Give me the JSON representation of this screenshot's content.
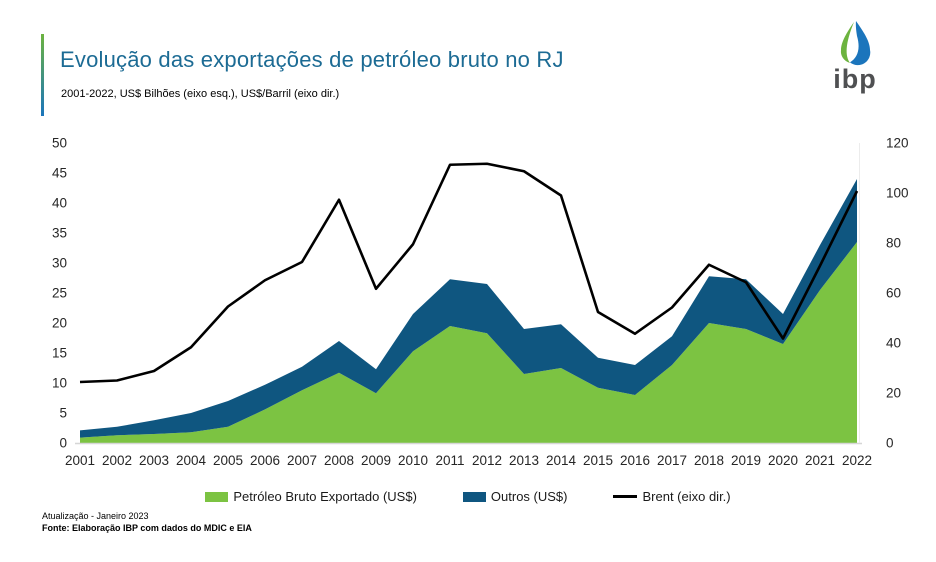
{
  "header": {
    "title": "Evolução das exportações de petróleo bruto no RJ",
    "subtitle": "2001-2022, US$ Bilhões (eixo esq.), US$/Barril (eixo dir.)",
    "logo_text": "ibp"
  },
  "chart_data": {
    "type": "area",
    "stacked_areas": true,
    "grid": false,
    "legend_position": "bottom",
    "x": [
      "2001",
      "2002",
      "2003",
      "2004",
      "2005",
      "2006",
      "2007",
      "2008",
      "2009",
      "2010",
      "2011",
      "2012",
      "2013",
      "2014",
      "2015",
      "2016",
      "2017",
      "2018",
      "2019",
      "2020",
      "2021",
      "2022"
    ],
    "series": [
      {
        "name": "Petróleo Bruto Exportado (US$)",
        "type": "area",
        "axis": "left",
        "color": "#7CC342",
        "values": [
          0.9,
          1.3,
          1.5,
          1.8,
          2.7,
          5.6,
          8.8,
          11.7,
          8.3,
          15.3,
          19.5,
          18.3,
          11.5,
          12.5,
          9.2,
          8.0,
          13.0,
          20.0,
          19.0,
          16.5,
          25.5,
          33.5
        ]
      },
      {
        "name": "Outros (US$)",
        "type": "area",
        "axis": "left",
        "color": "#0F5680",
        "values": [
          1.2,
          1.4,
          2.3,
          3.2,
          4.3,
          4.1,
          3.9,
          5.3,
          4.0,
          6.2,
          7.8,
          8.2,
          7.5,
          7.3,
          5.0,
          5.0,
          4.8,
          7.8,
          8.3,
          5.0,
          7.5,
          10.5
        ]
      },
      {
        "name": "Brent (eixo dir.)",
        "type": "line",
        "axis": "right",
        "color": "#000000",
        "values": [
          24.4,
          25.0,
          28.8,
          38.3,
          54.6,
          65.1,
          72.4,
          97.3,
          61.7,
          79.5,
          111.3,
          111.7,
          108.7,
          99.0,
          52.4,
          43.7,
          54.2,
          71.3,
          64.3,
          41.8,
          70.9,
          100.8
        ]
      }
    ],
    "left_axis": {
      "label": "US$ Bilhões (eixo esq.)",
      "min": 0,
      "max": 50,
      "step": 5,
      "ticks": [
        0,
        5,
        10,
        15,
        20,
        25,
        30,
        35,
        40,
        45,
        50
      ]
    },
    "right_axis": {
      "label": "US$/Barril (eixo dir.)",
      "min": 0,
      "max": 120,
      "step": 20,
      "ticks": [
        0,
        20,
        40,
        60,
        80,
        100,
        120
      ]
    },
    "colors": {
      "petroleo_green": "#7CC342",
      "outros_blue": "#0F5680",
      "brent_black": "#000000",
      "title_blue": "#1C6B94",
      "axis_line_gray": "#D6D6D6"
    }
  },
  "footer": {
    "line1": "Atualização - Janeiro 2023",
    "line2": "Fonte: Elaboração IBP com dados do MDIC e EIA"
  }
}
